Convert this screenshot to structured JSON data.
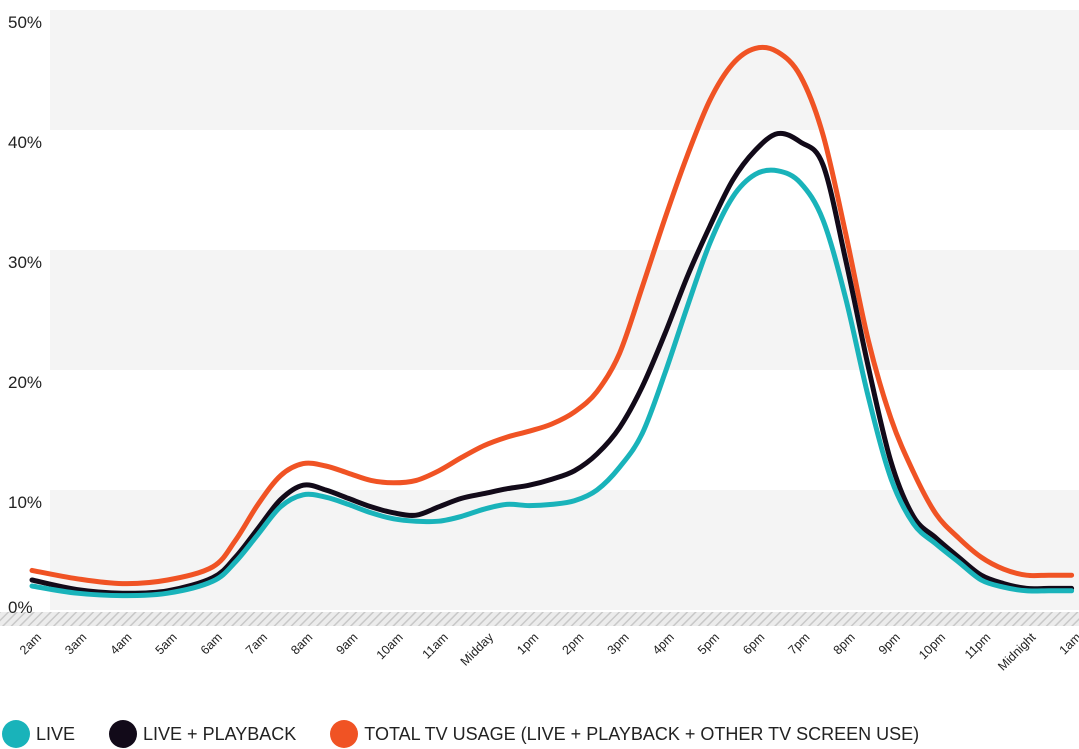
{
  "chart_data": {
    "type": "line",
    "categories": [
      "2am",
      "3am",
      "4am",
      "5am",
      "6am",
      "7am",
      "8am",
      "9am",
      "10am",
      "11am",
      "Midday",
      "1pm",
      "2pm",
      "3pm",
      "4pm",
      "5pm",
      "6pm",
      "7pm",
      "8pm",
      "9pm",
      "10pm",
      "11pm",
      "Midnight",
      "1am"
    ],
    "y_ticks": [
      "0%",
      "10%",
      "20%",
      "30%",
      "40%",
      "50%"
    ],
    "ylim": [
      0,
      50
    ],
    "grid": "alternating horizontal bands",
    "legend_position": "bottom",
    "series": [
      {
        "name": "LIVE",
        "color": "#19b3ba",
        "x": [
          0,
          1,
          2,
          3,
          4,
          4.5,
          5,
          5.5,
          6,
          6.5,
          7,
          7.5,
          8,
          8.5,
          9,
          9.5,
          10,
          10.5,
          11,
          11.5,
          12,
          12.5,
          13,
          13.5,
          14,
          14.5,
          15,
          15.5,
          16,
          16.5,
          17,
          17.5,
          18,
          18.5,
          19,
          19.5,
          20,
          20.5,
          21,
          21.5,
          22,
          22.5,
          23
        ],
        "values": [
          2.0,
          1.4,
          1.2,
          1.4,
          2.4,
          4.0,
          6.3,
          8.6,
          9.6,
          9.4,
          8.8,
          8.1,
          7.6,
          7.4,
          7.4,
          7.8,
          8.4,
          8.8,
          8.7,
          8.8,
          9.1,
          10.0,
          11.9,
          14.7,
          19.7,
          25.3,
          30.6,
          34.4,
          36.3,
          36.6,
          35.6,
          32.5,
          26.0,
          17.8,
          11.0,
          7.2,
          5.5,
          4.0,
          2.5,
          1.9,
          1.6,
          1.6,
          1.6
        ]
      },
      {
        "name": "LIVE + PLAYBACK",
        "color": "#120a19",
        "x": [
          0,
          1,
          2,
          3,
          4,
          4.5,
          5,
          5.5,
          6,
          6.5,
          7,
          7.5,
          8,
          8.5,
          9,
          9.5,
          10,
          10.5,
          11,
          11.5,
          12,
          12.5,
          13,
          13.5,
          14,
          14.5,
          15,
          15.5,
          16,
          16.5,
          17,
          17.5,
          18,
          18.5,
          19,
          19.5,
          20,
          20.5,
          21,
          21.5,
          22,
          22.5,
          23
        ],
        "values": [
          2.5,
          1.7,
          1.4,
          1.6,
          2.7,
          4.4,
          6.8,
          9.2,
          10.4,
          10.0,
          9.3,
          8.6,
          8.1,
          7.9,
          8.6,
          9.3,
          9.7,
          10.1,
          10.4,
          10.9,
          11.6,
          13.0,
          15.2,
          18.6,
          23.0,
          27.8,
          32.0,
          35.8,
          38.3,
          39.7,
          39.0,
          37.1,
          29.2,
          20.3,
          12.4,
          7.8,
          6.0,
          4.4,
          2.9,
          2.2,
          1.8,
          1.8,
          1.8
        ]
      },
      {
        "name": "TOTAL TV USAGE (LIVE + PLAYBACK + OTHER TV SCREEN USE)",
        "color": "#f05324",
        "x": [
          0,
          1,
          2,
          3,
          4,
          4.5,
          5,
          5.5,
          6,
          6.5,
          7,
          7.5,
          8,
          8.5,
          9,
          9.5,
          10,
          10.5,
          11,
          11.5,
          12,
          12.5,
          13,
          13.5,
          14,
          14.5,
          15,
          15.5,
          16,
          16.5,
          17,
          17.5,
          18,
          18.5,
          19,
          19.5,
          20,
          20.5,
          21,
          21.5,
          22,
          22.5,
          23
        ],
        "values": [
          3.3,
          2.6,
          2.2,
          2.5,
          3.6,
          5.8,
          8.8,
          11.2,
          12.2,
          12.0,
          11.4,
          10.8,
          10.6,
          10.8,
          11.6,
          12.7,
          13.7,
          14.4,
          14.9,
          15.5,
          16.5,
          18.2,
          21.4,
          26.9,
          32.6,
          37.9,
          42.5,
          45.5,
          46.8,
          46.5,
          44.5,
          39.6,
          31.4,
          22.5,
          16.0,
          11.5,
          8.0,
          6.0,
          4.4,
          3.4,
          2.9,
          2.9,
          2.9
        ]
      }
    ],
    "legend": {
      "live": "LIVE",
      "live_playback": "LIVE + PLAYBACK",
      "total": "TOTAL TV USAGE (LIVE + PLAYBACK + OTHER TV SCREEN USE)"
    }
  }
}
